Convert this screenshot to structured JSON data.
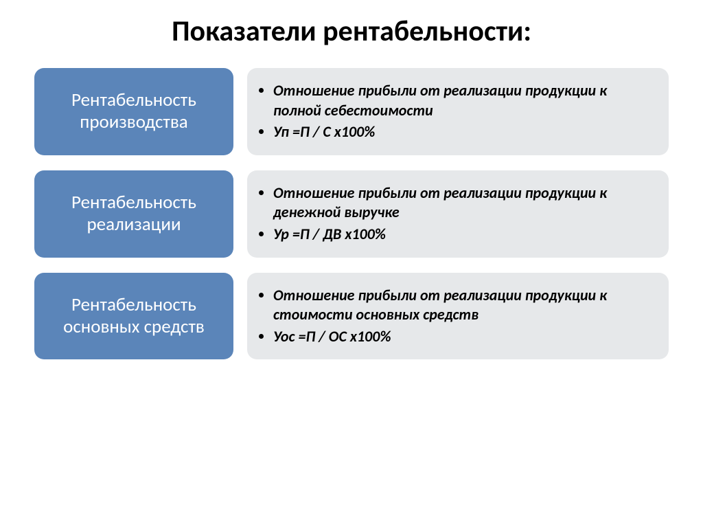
{
  "title": "Показатели рентабельности:",
  "colors": {
    "label_bg": "#5b85b9",
    "label_text": "#ffffff",
    "desc_bg": "#e6e8ea",
    "desc_text": "#000000",
    "page_bg": "#ffffff"
  },
  "typography": {
    "title_fontsize": 42,
    "title_weight": 700,
    "label_fontsize": 27,
    "label_weight": 400,
    "desc_fontsize": 22,
    "desc_weight": 700,
    "desc_style": "italic"
  },
  "layout": {
    "row_gap": 22,
    "label_width": 290,
    "border_radius": 14
  },
  "rows": [
    {
      "label": "Рентабельность производства",
      "bullets": [
        "Отношение прибыли от реализации продукции к полной себестоимости",
        "Уп =П / С х100%"
      ]
    },
    {
      "label": "Рентабельность реализации",
      "bullets": [
        "Отношение прибыли от реализации продукции к денежной выручке",
        "Ур =П / ДВ х100%"
      ]
    },
    {
      "label": "Рентабельность основных средств",
      "bullets": [
        "Отношение прибыли от реализации продукции к стоимости основных средств",
        "Уос =П / ОС х100%"
      ]
    }
  ]
}
